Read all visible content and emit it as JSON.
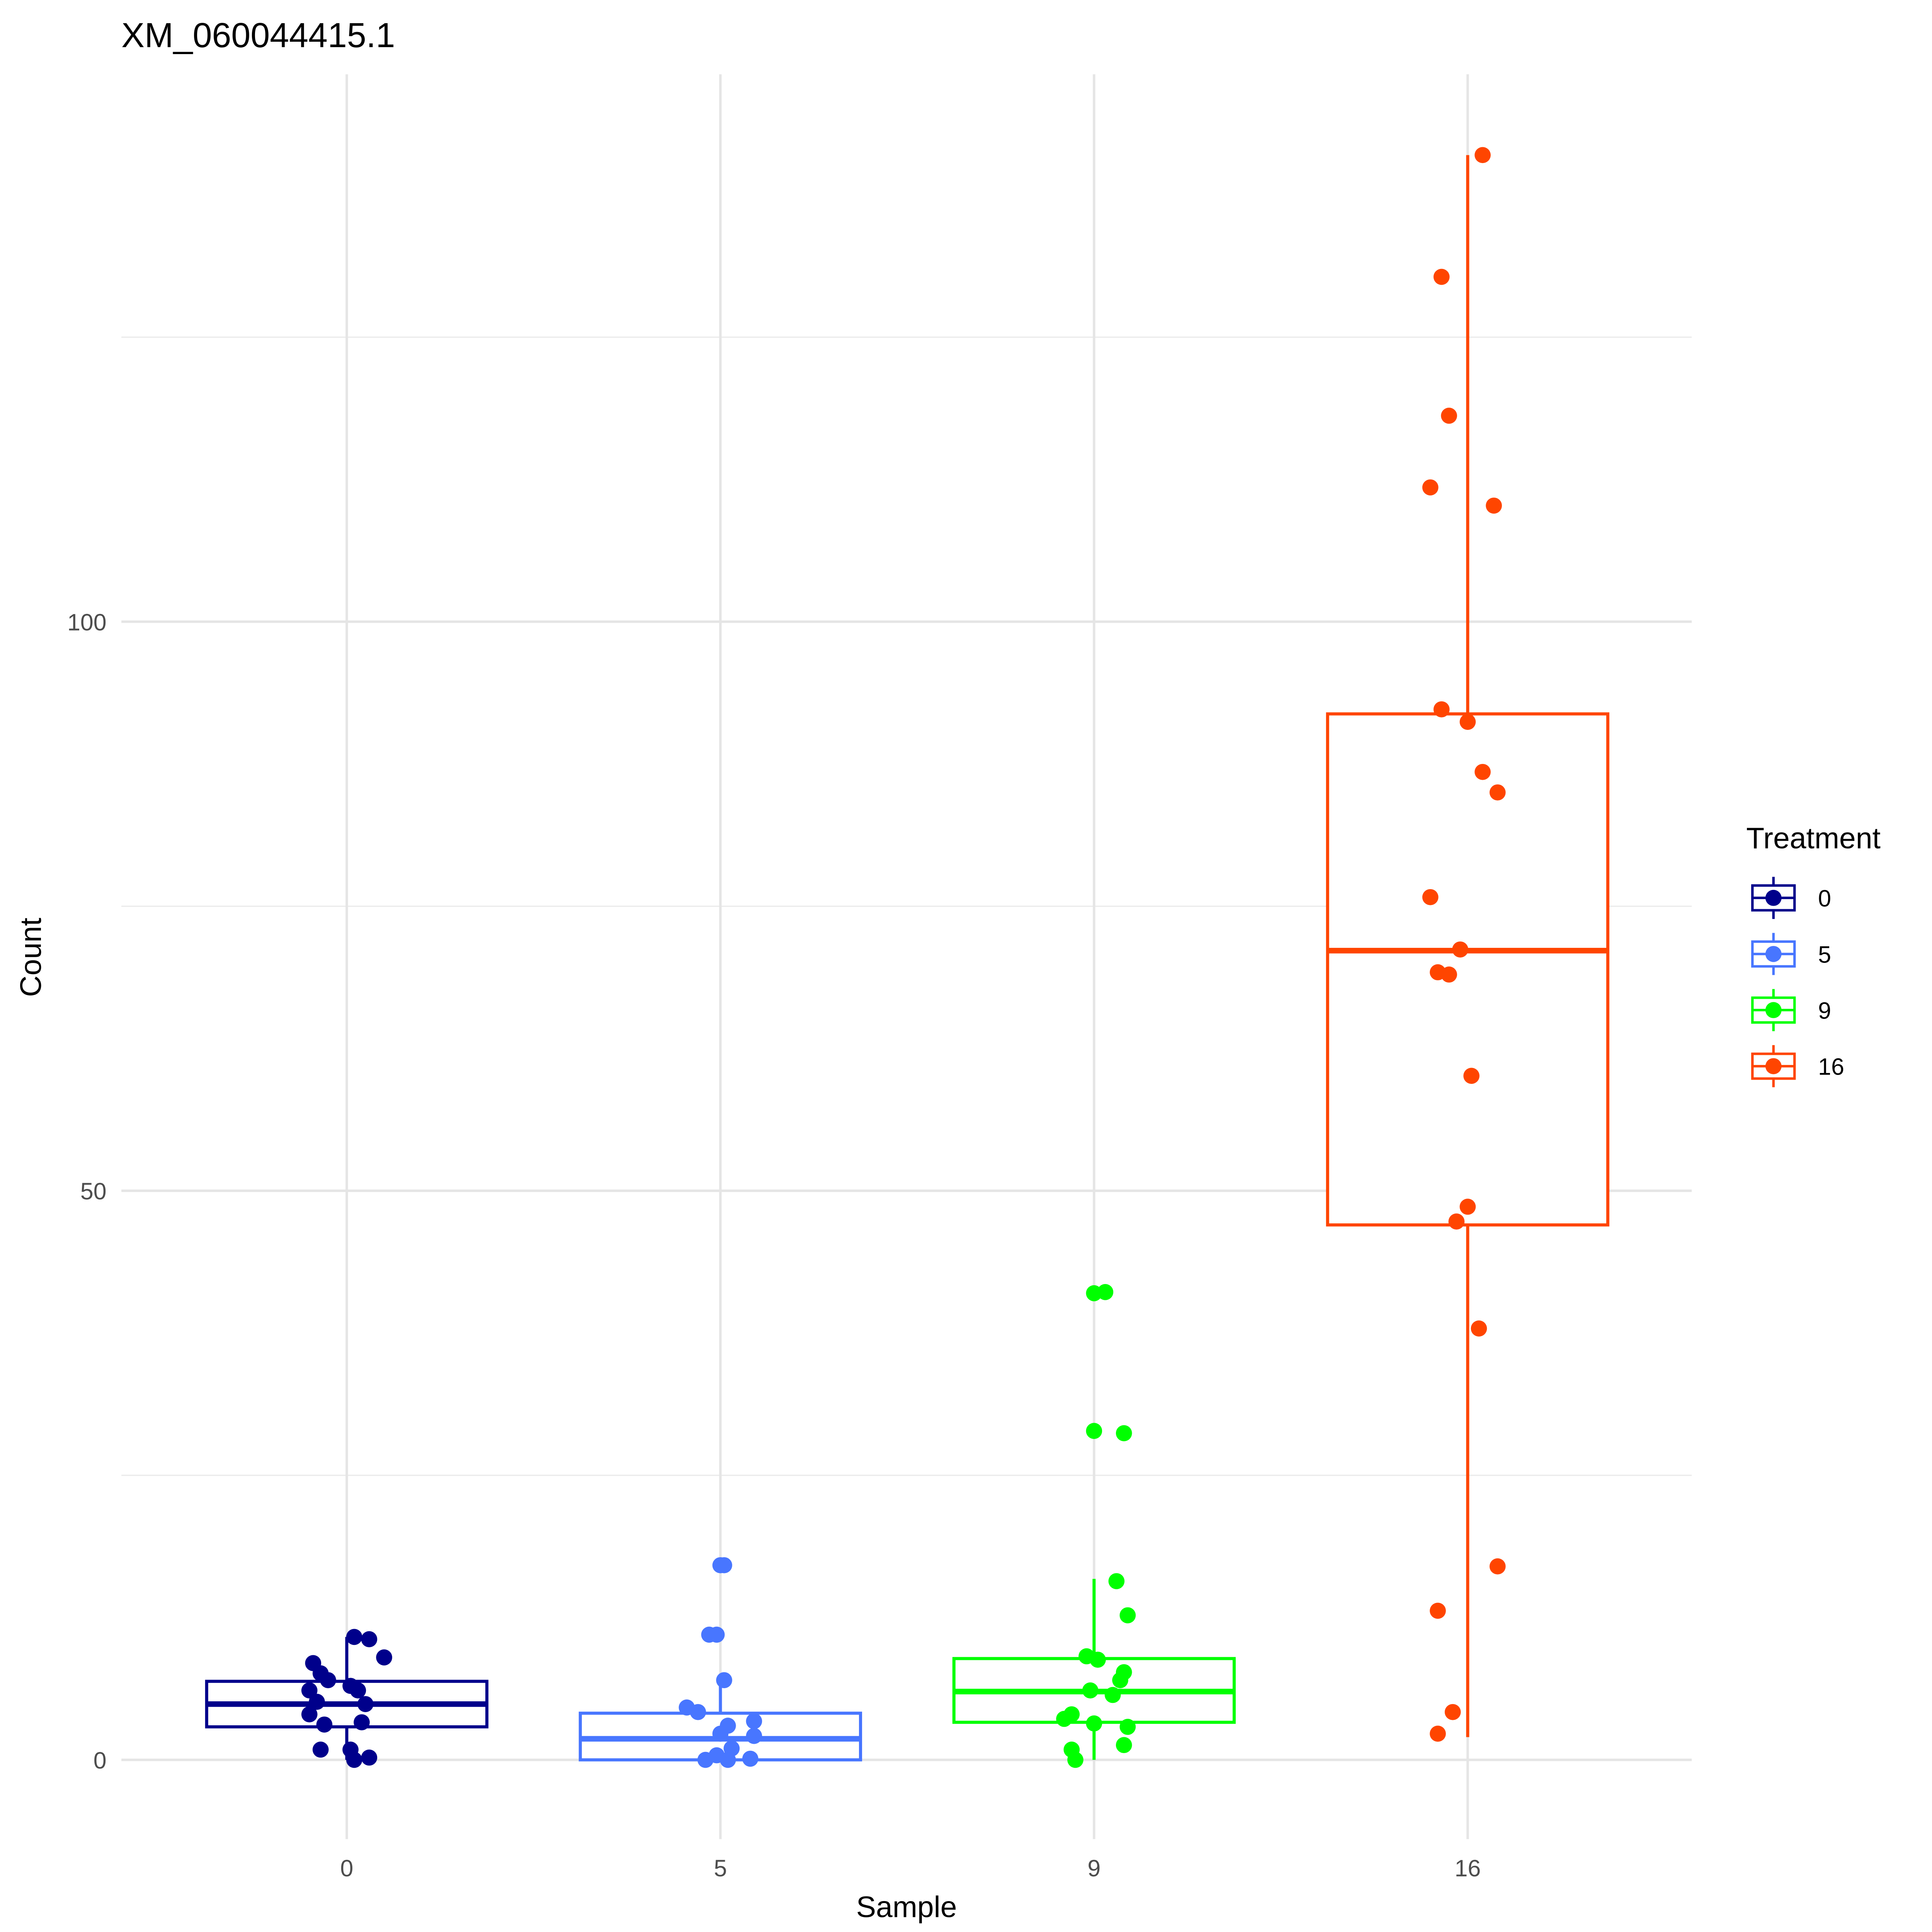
{
  "chart_data": {
    "type": "box",
    "title": "XM_060044415.1",
    "xlabel": "Sample",
    "ylabel": "Count",
    "categories": [
      "0",
      "5",
      "9",
      "16"
    ],
    "yticks": [
      0,
      50,
      100
    ],
    "ytick_labels": [
      "0",
      "50",
      "100"
    ],
    "minor_yticks": [
      25,
      75,
      125
    ],
    "ylim": [
      -7,
      148
    ],
    "grid": true,
    "legend": {
      "title": "Treatment",
      "placement": "right",
      "entries": [
        "0",
        "5",
        "9",
        "16"
      ]
    },
    "colors": [
      "#00008B",
      "#4876FF",
      "#00FF00",
      "#FF4500"
    ],
    "boxes": [
      {
        "q1": 2.9,
        "median": 4.9,
        "q3": 6.9,
        "whisker_low": 0,
        "whisker_high": 10.8
      },
      {
        "q1": 0,
        "median": 1.85,
        "q3": 4.1,
        "whisker_low": 0,
        "whisker_high": 7.0
      },
      {
        "q1": 3.3,
        "median": 6.0,
        "q3": 8.9,
        "whisker_low": 0,
        "whisker_high": 15.9
      },
      {
        "q1": 47.0,
        "median": 71.1,
        "q3": 91.9,
        "whisker_low": 2.0,
        "whisker_high": 141.0
      }
    ],
    "points": [
      {
        "values": [
          10.8,
          10.6,
          9.0,
          8.5,
          7.6,
          7.0,
          6.5,
          6.1,
          6.1,
          5.1,
          4.9,
          4.0,
          3.1,
          3.3,
          0.9,
          0.9,
          0,
          0.2
        ],
        "jitter": [
          0.02,
          0.06,
          0.1,
          -0.09,
          -0.07,
          -0.05,
          0.01,
          0.03,
          -0.1,
          -0.08,
          0.05,
          -0.1,
          -0.06,
          0.04,
          -0.07,
          0.01,
          0.02,
          0.06
        ]
      },
      {
        "values": [
          17.1,
          17.1,
          11.0,
          11.0,
          7.0,
          4.6,
          4.2,
          3.0,
          3.4,
          2.3,
          2.1,
          1.0,
          0.4,
          0,
          0,
          0.1
        ],
        "jitter": [
          0.0,
          0.01,
          -0.03,
          -0.01,
          0.01,
          -0.09,
          -0.06,
          0.02,
          0.09,
          0.0,
          0.09,
          0.03,
          -0.01,
          -0.04,
          0.02,
          0.08
        ]
      },
      {
        "values": [
          41.0,
          41.1,
          28.9,
          28.7,
          15.7,
          12.7,
          9.1,
          8.8,
          7.7,
          7.0,
          6.1,
          5.7,
          4.0,
          3.6,
          3.2,
          2.9,
          1.3,
          0.9,
          0
        ],
        "jitter": [
          0.0,
          0.03,
          0.0,
          0.08,
          0.06,
          0.09,
          -0.02,
          0.01,
          0.08,
          0.07,
          -0.01,
          0.05,
          -0.06,
          -0.08,
          0.0,
          0.09,
          0.08,
          -0.06,
          -0.05
        ]
      },
      {
        "values": [
          141.0,
          130.3,
          118.1,
          111.8,
          110.2,
          92.3,
          91.2,
          86.8,
          85.0,
          75.8,
          71.2,
          69.2,
          69.0,
          60.1,
          48.6,
          47.3,
          37.9,
          17.0,
          13.1,
          4.2,
          2.3
        ],
        "jitter": [
          0.04,
          -0.07,
          -0.05,
          -0.1,
          0.07,
          -0.07,
          0.0,
          0.04,
          0.08,
          -0.1,
          -0.02,
          -0.08,
          -0.05,
          0.01,
          0.0,
          -0.03,
          0.03,
          0.08,
          -0.08,
          -0.04,
          -0.08
        ]
      }
    ]
  }
}
